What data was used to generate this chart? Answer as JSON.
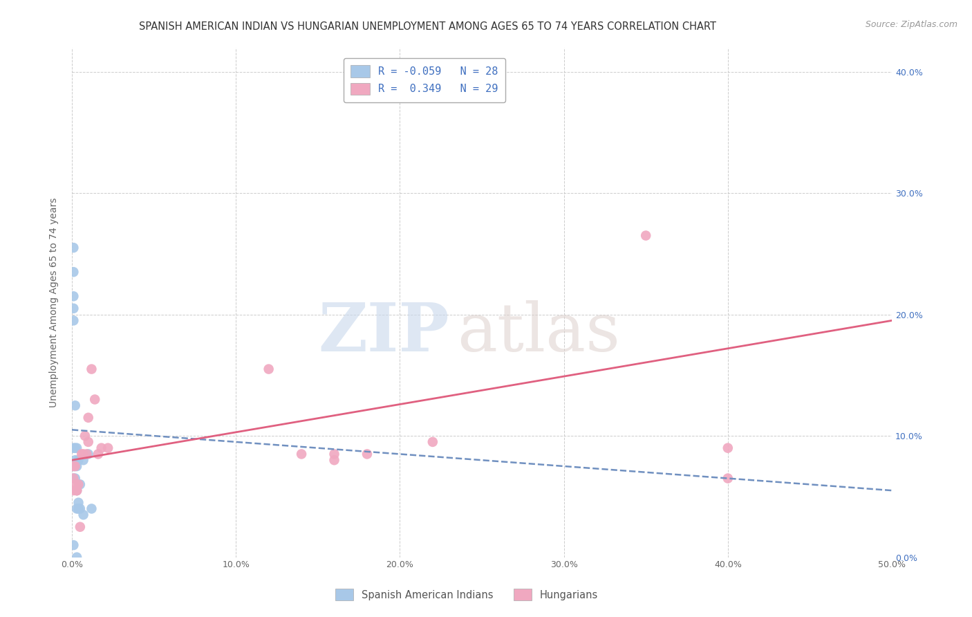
{
  "title": "SPANISH AMERICAN INDIAN VS HUNGARIAN UNEMPLOYMENT AMONG AGES 65 TO 74 YEARS CORRELATION CHART",
  "source": "Source: ZipAtlas.com",
  "ylabel": "Unemployment Among Ages 65 to 74 years",
  "xlim": [
    0.0,
    0.5
  ],
  "ylim": [
    0.0,
    0.42
  ],
  "xticks": [
    0.0,
    0.1,
    0.2,
    0.3,
    0.4,
    0.5
  ],
  "xtick_labels": [
    "0.0%",
    "10.0%",
    "20.0%",
    "30.0%",
    "40.0%",
    "50.0%"
  ],
  "ytick_labels_right": [
    "0.0%",
    "10.0%",
    "20.0%",
    "30.0%",
    "40.0%"
  ],
  "yticks_right": [
    0.0,
    0.1,
    0.2,
    0.3,
    0.4
  ],
  "grid_color": "#cccccc",
  "background_color": "#ffffff",
  "legend_R_blue": "-0.059",
  "legend_N_blue": "28",
  "legend_R_pink": "0.349",
  "legend_N_pink": "29",
  "blue_scatter_x": [
    0.001,
    0.001,
    0.001,
    0.001,
    0.001,
    0.001,
    0.001,
    0.001,
    0.002,
    0.002,
    0.002,
    0.002,
    0.002,
    0.003,
    0.003,
    0.003,
    0.003,
    0.004,
    0.004,
    0.004,
    0.005,
    0.005,
    0.007,
    0.007,
    0.01,
    0.012,
    0.001,
    0.003
  ],
  "blue_scatter_y": [
    0.255,
    0.235,
    0.215,
    0.205,
    0.195,
    0.09,
    0.075,
    0.065,
    0.125,
    0.09,
    0.08,
    0.075,
    0.065,
    0.09,
    0.075,
    0.055,
    0.04,
    0.08,
    0.045,
    0.04,
    0.06,
    0.04,
    0.08,
    0.035,
    0.085,
    0.04,
    0.01,
    0.0
  ],
  "pink_scatter_x": [
    0.001,
    0.001,
    0.001,
    0.002,
    0.002,
    0.003,
    0.003,
    0.004,
    0.005,
    0.006,
    0.007,
    0.008,
    0.009,
    0.01,
    0.01,
    0.012,
    0.014,
    0.016,
    0.018,
    0.022,
    0.12,
    0.14,
    0.16,
    0.16,
    0.18,
    0.22,
    0.35,
    0.4,
    0.4
  ],
  "pink_scatter_y": [
    0.075,
    0.065,
    0.055,
    0.075,
    0.06,
    0.055,
    0.055,
    0.06,
    0.025,
    0.085,
    0.085,
    0.1,
    0.085,
    0.115,
    0.095,
    0.155,
    0.13,
    0.085,
    0.09,
    0.09,
    0.155,
    0.085,
    0.085,
    0.08,
    0.085,
    0.095,
    0.265,
    0.09,
    0.065
  ],
  "blue_line_x": [
    0.0,
    0.5
  ],
  "blue_line_y": [
    0.105,
    0.055
  ],
  "pink_line_x": [
    0.0,
    0.5
  ],
  "pink_line_y": [
    0.08,
    0.195
  ],
  "blue_dot_color": "#a8c8e8",
  "pink_dot_color": "#f0a8c0",
  "blue_line_color": "#7090c0",
  "pink_line_color": "#e06080",
  "blue_legend_color": "#a8c8e8",
  "pink_legend_color": "#f0a8c0",
  "legend_text_color": "#4070c0",
  "title_fontsize": 10.5,
  "axis_label_fontsize": 10,
  "tick_fontsize": 9
}
